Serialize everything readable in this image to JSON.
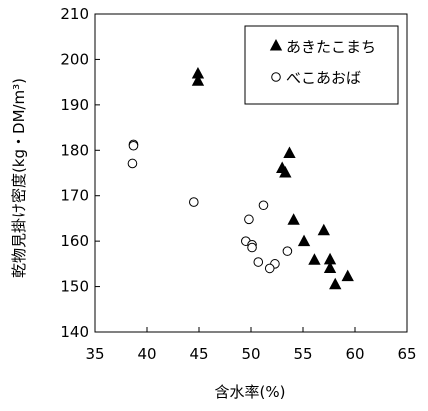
{
  "chart_data": {
    "type": "scatter",
    "xlabel": "含水率(%)",
    "ylabel": "乾物見掛け密度(kg・DM/m³)",
    "xlim": [
      35,
      65
    ],
    "ylim": [
      140,
      210
    ],
    "x_ticks": [
      35,
      40,
      45,
      50,
      55,
      60,
      65
    ],
    "y_ticks": [
      140,
      150,
      160,
      170,
      180,
      190,
      200,
      210
    ],
    "grid": false,
    "legend_position": "top-right",
    "series": [
      {
        "name": "あきたこまち",
        "marker": "filled-triangle",
        "color": "#000000",
        "points": [
          {
            "x": 44.9,
            "y": 196.8
          },
          {
            "x": 44.9,
            "y": 195.2
          },
          {
            "x": 53.7,
            "y": 179.3
          },
          {
            "x": 53.0,
            "y": 176.0
          },
          {
            "x": 53.3,
            "y": 175.0
          },
          {
            "x": 54.1,
            "y": 164.6
          },
          {
            "x": 57.0,
            "y": 162.3
          },
          {
            "x": 55.1,
            "y": 159.9
          },
          {
            "x": 57.6,
            "y": 155.9
          },
          {
            "x": 56.1,
            "y": 155.8
          },
          {
            "x": 57.6,
            "y": 154.0
          },
          {
            "x": 59.3,
            "y": 152.2
          },
          {
            "x": 58.1,
            "y": 150.4
          }
        ]
      },
      {
        "name": "べこあおば",
        "marker": "open-circle",
        "color": "#000000",
        "points": [
          {
            "x": 38.7,
            "y": 181.3
          },
          {
            "x": 38.7,
            "y": 181.0
          },
          {
            "x": 38.6,
            "y": 177.1
          },
          {
            "x": 44.5,
            "y": 168.6
          },
          {
            "x": 51.2,
            "y": 167.9
          },
          {
            "x": 49.8,
            "y": 164.8
          },
          {
            "x": 49.5,
            "y": 160.0
          },
          {
            "x": 50.1,
            "y": 159.2
          },
          {
            "x": 50.1,
            "y": 158.6
          },
          {
            "x": 53.5,
            "y": 157.8
          },
          {
            "x": 50.7,
            "y": 155.4
          },
          {
            "x": 52.3,
            "y": 155.0
          },
          {
            "x": 51.8,
            "y": 154.0
          }
        ]
      }
    ]
  }
}
